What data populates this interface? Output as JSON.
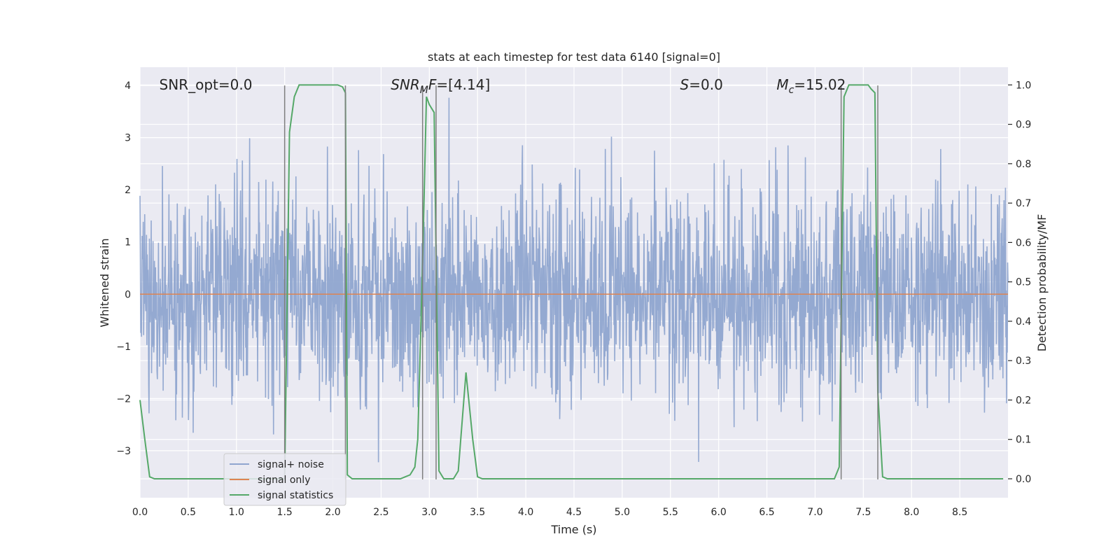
{
  "chart_data": {
    "type": "line",
    "title": "stats at each timestep for test data 6140 [signal=0]",
    "xlabel": "Time (s)",
    "ylabel": "Whitened strain",
    "ylabel_right": "Detection probability/MF",
    "xlim": [
      0,
      9.0
    ],
    "ylim": [
      -3.9,
      4.35
    ],
    "ylim_right": [
      -0.048,
      1.045
    ],
    "x_ticks": [
      0.0,
      0.5,
      1.0,
      1.5,
      2.0,
      2.5,
      3.0,
      3.5,
      4.0,
      4.5,
      5.0,
      5.5,
      6.0,
      6.5,
      7.0,
      7.5,
      8.0,
      8.5
    ],
    "x_tick_labels": [
      "0.0",
      "0.5",
      "1.0",
      "1.5",
      "2.0",
      "2.5",
      "3.0",
      "3.5",
      "4.0",
      "4.5",
      "5.0",
      "5.5",
      "6.0",
      "6.5",
      "7.0",
      "7.5",
      "8.0",
      "8.5"
    ],
    "y_ticks": [
      4,
      3,
      2,
      1,
      0,
      -1,
      -2,
      -3
    ],
    "y_tick_labels": [
      "4",
      "3",
      "2",
      "1",
      "0",
      "−1",
      "−2",
      "−3"
    ],
    "y2_ticks": [
      1.0,
      0.9,
      0.8,
      0.7,
      0.6,
      0.5,
      0.4,
      0.3,
      0.2,
      0.1,
      0.0
    ],
    "y2_tick_labels": [
      "1.0",
      "0.9",
      "0.8",
      "0.7",
      "0.6",
      "0.5",
      "0.4",
      "0.3",
      "0.2",
      "0.1",
      "0.0"
    ],
    "grid": true,
    "legend_position": "lower-left",
    "colors": {
      "background": "#eaeaf2",
      "noise": "#8fa5cf",
      "signal": "#dd8452",
      "stats": "#55a868",
      "vline": "#7f7f7f"
    },
    "annotations": [
      {
        "text": "SNR_opt=0.0",
        "x": 0.2,
        "y": 4.0
      },
      {
        "text": "SNR_MF=[4.14]",
        "x": 2.6,
        "y": 4.0
      },
      {
        "text": "S=0.0",
        "x": 5.6,
        "y": 4.0
      },
      {
        "text": "M_c=15.02",
        "x": 6.6,
        "y": 4.0
      }
    ],
    "series": [
      {
        "name": "signal+ noise",
        "style": "noise",
        "amplitude_std": 1.0,
        "peak_max": 4.0,
        "peak_min": -3.6
      },
      {
        "name": "signal only",
        "style": "line",
        "x": [
          0,
          9.0
        ],
        "y": [
          0,
          0
        ]
      },
      {
        "name": "signal statistics",
        "style": "line",
        "axis": "right",
        "x": [
          0.0,
          0.05,
          0.1,
          0.15,
          0.2,
          0.3,
          0.5,
          0.7,
          0.9,
          1.1,
          1.3,
          1.4,
          1.45,
          1.5,
          1.55,
          1.6,
          1.65,
          1.7,
          1.8,
          1.9,
          2.0,
          2.05,
          2.1,
          2.13,
          2.15,
          2.2,
          2.25,
          2.3,
          2.4,
          2.5,
          2.6,
          2.7,
          2.75,
          2.8,
          2.85,
          2.88,
          2.93,
          2.97,
          3.0,
          3.05,
          3.1,
          3.15,
          3.2,
          3.25,
          3.3,
          3.38,
          3.45,
          3.5,
          3.55,
          3.6,
          3.8,
          4.0,
          4.5,
          5.0,
          5.5,
          6.0,
          6.5,
          6.9,
          7.0,
          7.15,
          7.2,
          7.25,
          7.3,
          7.35,
          7.4,
          7.5,
          7.55,
          7.58,
          7.62,
          7.65,
          7.7,
          7.75,
          7.8,
          8.0,
          8.5,
          8.95
        ],
        "y": [
          0.2,
          0.1,
          0.005,
          0.0,
          0.0,
          0.0,
          0.0,
          0.0,
          0.0,
          0.0,
          0.0,
          0.0,
          0.0,
          0.0,
          0.88,
          0.97,
          1.0,
          1.0,
          1.0,
          1.0,
          1.0,
          1.0,
          0.995,
          0.98,
          0.01,
          0.0,
          0.0,
          0.0,
          0.0,
          0.0,
          0.0,
          0.0,
          0.005,
          0.01,
          0.03,
          0.1,
          0.55,
          0.97,
          0.95,
          0.93,
          0.02,
          0.0,
          0.0,
          0.0,
          0.02,
          0.27,
          0.1,
          0.005,
          0.0,
          0.0,
          0.0,
          0.0,
          0.0,
          0.0,
          0.0,
          0.0,
          0.0,
          0.0,
          0.0,
          0.0,
          0.0,
          0.03,
          0.97,
          1.0,
          1.0,
          1.0,
          1.0,
          0.99,
          0.98,
          0.22,
          0.005,
          0.0,
          0.0,
          0.0,
          0.0,
          0.0
        ]
      }
    ],
    "vlines": [
      1.5,
      2.13,
      2.93,
      3.07,
      7.27,
      7.65
    ],
    "vline_range": [
      -3.55,
      4.0
    ]
  }
}
